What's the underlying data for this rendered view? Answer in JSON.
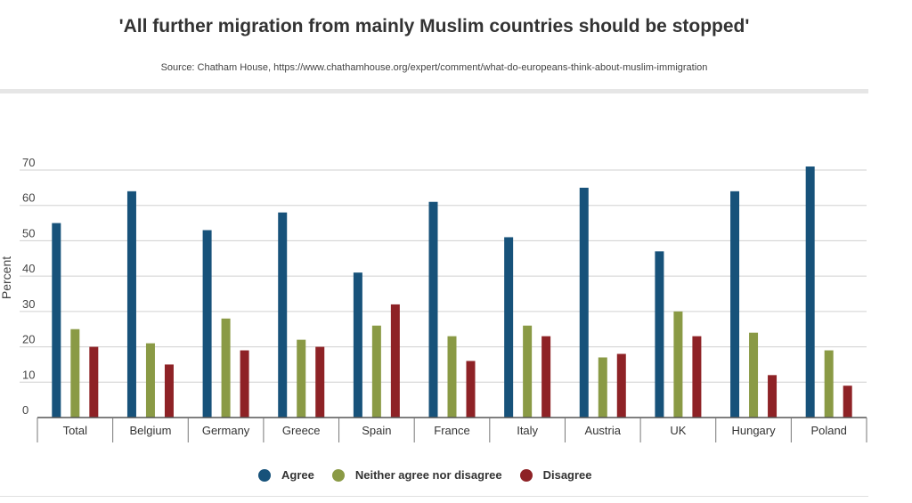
{
  "chart_data": {
    "type": "bar",
    "title": "'All further migration from mainly Muslim countries should be stopped'",
    "subtitle": "Source: Chatham House, https://www.chathamhouse.org/expert/comment/what-do-europeans-think-about-muslim-immigration",
    "ylabel": "Percent",
    "xlabel": "",
    "ylim": [
      0,
      70
    ],
    "yticks": [
      "0",
      "10",
      "20",
      "30",
      "40",
      "50",
      "60",
      "70"
    ],
    "grid": true,
    "legend_position": "bottom",
    "categories": [
      "Total",
      "Belgium",
      "Germany",
      "Greece",
      "Spain",
      "France",
      "Italy",
      "Austria",
      "UK",
      "Hungary",
      "Poland"
    ],
    "series": [
      {
        "name": "Agree",
        "color": "#17527a",
        "values": [
          55,
          64,
          53,
          58,
          41,
          61,
          51,
          65,
          47,
          64,
          71
        ]
      },
      {
        "name": "Neither agree nor disagree",
        "color": "#8a9a45",
        "values": [
          25,
          21,
          28,
          22,
          26,
          23,
          26,
          17,
          30,
          24,
          19
        ]
      },
      {
        "name": "Disagree",
        "color": "#8e2226",
        "values": [
          20,
          15,
          19,
          20,
          32,
          16,
          23,
          18,
          23,
          12,
          9
        ]
      }
    ]
  }
}
